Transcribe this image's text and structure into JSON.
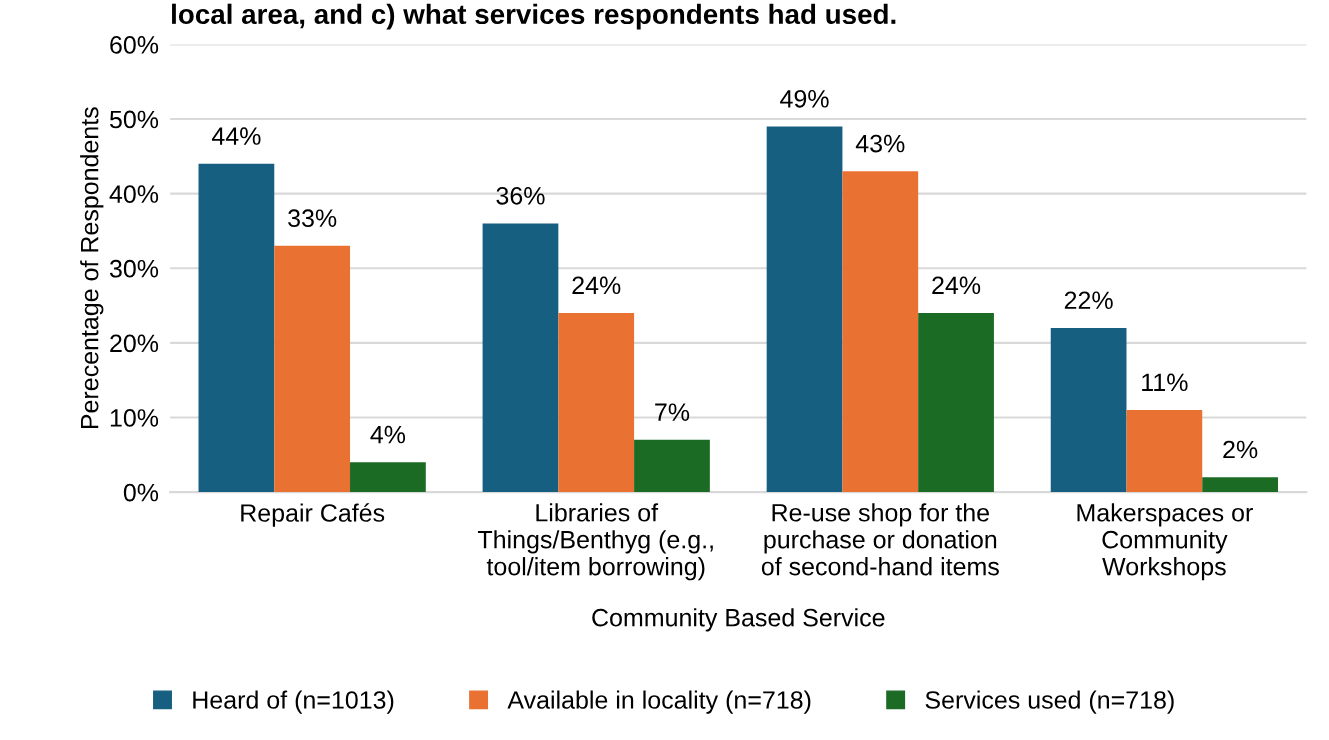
{
  "chart_data": {
    "type": "bar",
    "title": "local area, and c) what services respondents had used.",
    "xlabel": "Community Based Service",
    "ylabel": "Perecentage of Respondents",
    "categories": [
      "Repair Cafés",
      "Libraries of\nThings/Benthyg (e.g.,\ntool/item borrowing)",
      "Re-use shop for the\npurchase or donation\nof second-hand items",
      "Makerspaces or\nCommunity\nWorkshops"
    ],
    "series": [
      {
        "name": "Heard of (n=1013)",
        "color": "#175f80",
        "values": [
          44,
          36,
          49,
          22
        ],
        "value_labels": [
          "44%",
          "36%",
          "49%",
          "22%"
        ]
      },
      {
        "name": "Available in locality (n=718)",
        "color": "#e97132",
        "values": [
          33,
          24,
          43,
          11
        ],
        "value_labels": [
          "33%",
          "24%",
          "43%",
          "11%"
        ]
      },
      {
        "name": "Services used (n=718)",
        "color": "#1c6b25",
        "values": [
          4,
          7,
          24,
          2
        ],
        "value_labels": [
          "4%",
          "7%",
          "24%",
          "2%"
        ]
      }
    ],
    "ylim": [
      0,
      60
    ],
    "yticks": [
      {
        "value": 0,
        "label": "0%"
      },
      {
        "value": 10,
        "label": "10%"
      },
      {
        "value": 20,
        "label": "20%"
      },
      {
        "value": 30,
        "label": "30%"
      },
      {
        "value": 40,
        "label": "40%"
      },
      {
        "value": 50,
        "label": "50%"
      },
      {
        "value": 60,
        "label": "60%"
      }
    ],
    "grid": "y",
    "legend": "bottom"
  }
}
